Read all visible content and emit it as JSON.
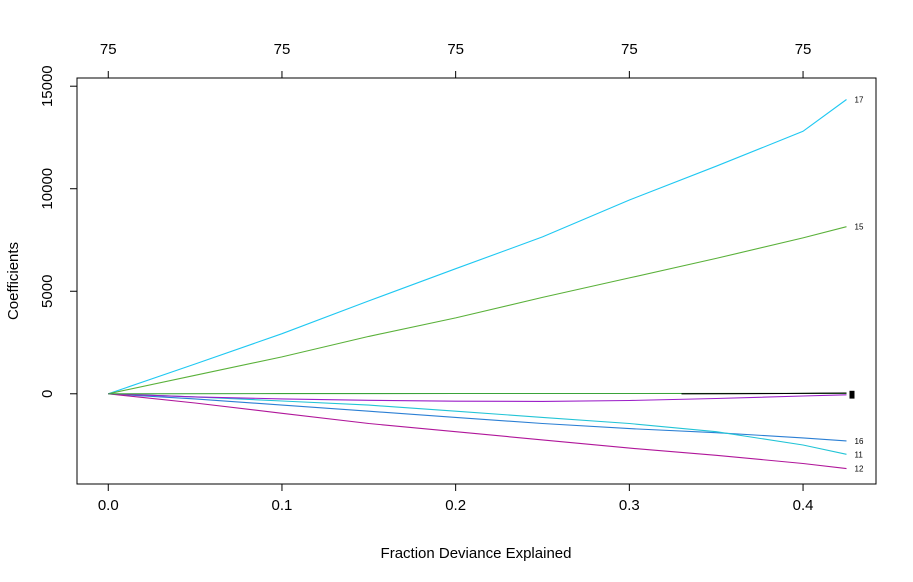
{
  "chart_data": {
    "type": "line",
    "xlabel": "Fraction Deviance Explained",
    "ylabel": "Coefficients",
    "xlim": [
      -0.018,
      0.442
    ],
    "ylim": [
      -4400,
      15400
    ],
    "x_ticks": [
      "0.0",
      "0.1",
      "0.2",
      "0.3",
      "0.4"
    ],
    "x_tick_values": [
      0.0,
      0.1,
      0.2,
      0.3,
      0.4
    ],
    "y_ticks": [
      "0",
      "5000",
      "10000",
      "15000"
    ],
    "y_tick_values": [
      0,
      5000,
      10000,
      15000
    ],
    "top_axis_ticks": [
      "75",
      "75",
      "75",
      "75",
      "75"
    ],
    "top_axis_tick_values": [
      0.0,
      0.1,
      0.2,
      0.3,
      0.4
    ],
    "grid": false,
    "legend": "none",
    "series": [
      {
        "name": "17",
        "color": "#1fc8f2",
        "x": [
          0.0,
          0.05,
          0.1,
          0.15,
          0.2,
          0.25,
          0.3,
          0.35,
          0.4,
          0.425
        ],
        "y": [
          0,
          1450,
          2930,
          4530,
          6100,
          7650,
          9450,
          11100,
          12800,
          14350
        ]
      },
      {
        "name": "15",
        "color": "#5ab13a",
        "x": [
          0.0,
          0.05,
          0.1,
          0.15,
          0.2,
          0.25,
          0.3,
          0.35,
          0.4,
          0.425
        ],
        "y": [
          0,
          900,
          1800,
          2800,
          3700,
          4700,
          5650,
          6600,
          7600,
          8150
        ]
      },
      {
        "name": "16",
        "color": "#2b7fd4",
        "x": [
          0.0,
          0.05,
          0.1,
          0.15,
          0.2,
          0.25,
          0.3,
          0.35,
          0.4,
          0.425
        ],
        "y": [
          0,
          -250,
          -550,
          -850,
          -1150,
          -1450,
          -1700,
          -1900,
          -2150,
          -2300
        ]
      },
      {
        "name": "11",
        "color": "#22c4d6",
        "x": [
          0.0,
          0.05,
          0.1,
          0.15,
          0.2,
          0.25,
          0.3,
          0.35,
          0.4,
          0.425
        ],
        "y": [
          0,
          -150,
          -350,
          -550,
          -850,
          -1150,
          -1450,
          -1850,
          -2500,
          -2950
        ]
      },
      {
        "name": "12",
        "color": "#b0169a",
        "x": [
          0.0,
          0.05,
          0.1,
          0.15,
          0.2,
          0.25,
          0.3,
          0.35,
          0.4,
          0.425
        ],
        "y": [
          0,
          -450,
          -950,
          -1450,
          -1850,
          -2250,
          -2650,
          -3000,
          -3400,
          -3650
        ]
      },
      {
        "name": "",
        "color": "#9b1ec8",
        "x": [
          0.0,
          0.05,
          0.1,
          0.15,
          0.2,
          0.25,
          0.3,
          0.35,
          0.4,
          0.425
        ],
        "y": [
          0,
          -150,
          -250,
          -320,
          -360,
          -370,
          -330,
          -230,
          -110,
          -50
        ]
      },
      {
        "name": "",
        "color": "#3aa33a",
        "x": [
          0.0,
          0.1,
          0.2,
          0.3,
          0.4,
          0.425
        ],
        "y": [
          0,
          10,
          15,
          15,
          20,
          20
        ]
      },
      {
        "name": "",
        "color": "#000000",
        "x": [
          0.33,
          0.36,
          0.39,
          0.41,
          0.425
        ],
        "y": [
          0,
          5,
          15,
          30,
          40
        ]
      }
    ],
    "end_labels": [
      {
        "text": "17",
        "y": 14350
      },
      {
        "text": "15",
        "y": 8150
      },
      {
        "text": "16",
        "y": -2300
      },
      {
        "text": "11",
        "y": -2950
      },
      {
        "text": "12",
        "y": -3650
      }
    ]
  }
}
